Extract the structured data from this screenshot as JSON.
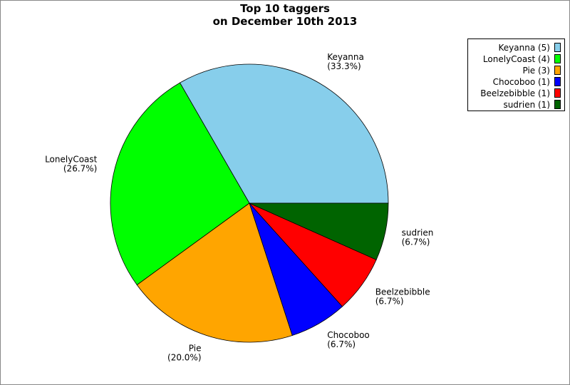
{
  "chart_data": {
    "type": "pie",
    "title": [
      "Top 10 taggers",
      "on December 10th 2013"
    ],
    "categories": [
      "Keyanna",
      "LonelyCoast",
      "Pie",
      "Chocoboo",
      "Beelzebibble",
      "sudrien"
    ],
    "values": [
      5,
      4,
      3,
      1,
      1,
      1
    ],
    "value_labels": [
      "(33.3%)",
      "(26.7%)",
      "(20.0%)",
      "(6.7%)",
      "(6.7%)",
      "(6.7%)"
    ],
    "legend_labels": [
      "Keyanna (5)",
      "LonelyCoast (4)",
      "Pie (3)",
      "Chocoboo (1)",
      "Beelzebibble (1)",
      "sudrien (1)"
    ],
    "colors": [
      "#87ceeb",
      "#00ff00",
      "#ffa500",
      "#0000ff",
      "#ff0000",
      "#006400"
    ],
    "legend": "upper right"
  }
}
